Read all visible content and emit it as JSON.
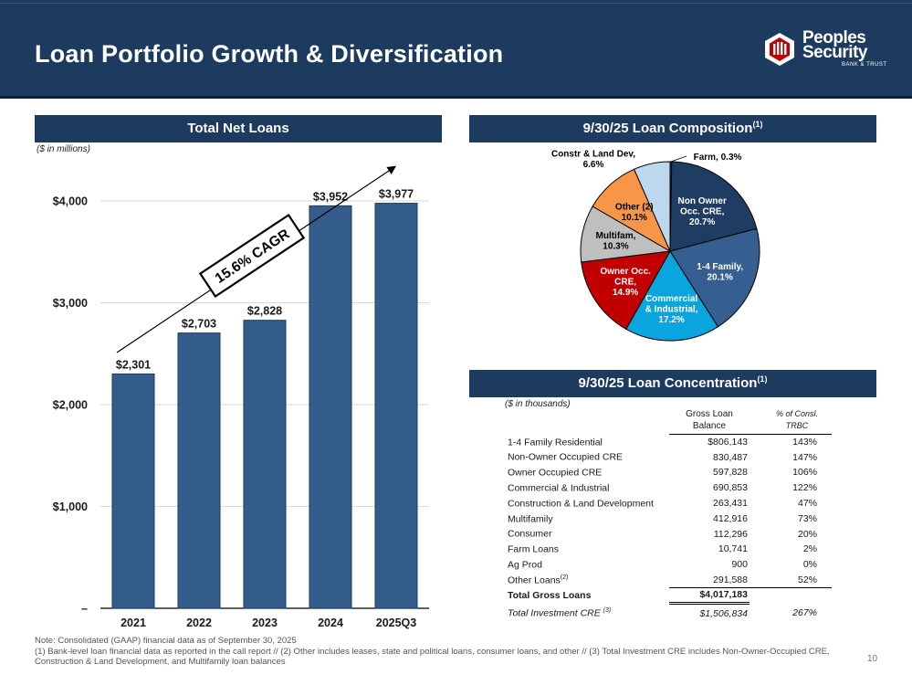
{
  "header": {
    "title": "Loan Portfolio Growth & Diversification"
  },
  "logo": {
    "line1": "Peoples",
    "line2": "Security",
    "line3": "BANK & TRUST"
  },
  "colors": {
    "header_bg": "#1d3a5f",
    "bar": "#345d8c"
  },
  "left_panel": {
    "title": "Total Net Loans",
    "unit": "($ in millions)"
  },
  "composition": {
    "title": "9/30/25 Loan Composition",
    "sup": "(1)"
  },
  "concentration": {
    "title": "9/30/25 Loan Concentration",
    "sup": "(1)",
    "unit": "($ in thousands)",
    "col_balance_line1": "Gross Loan",
    "col_balance_line2": "Balance",
    "col_pct_line1": "% of Consl.",
    "col_pct_line2": "TRBC",
    "rows": [
      {
        "label": "1-4 Family Residential",
        "sup": "",
        "balance": "$806,143",
        "pct": "143%"
      },
      {
        "label": "Non-Owner Occupied CRE",
        "sup": "",
        "balance": "830,487",
        "pct": "147%"
      },
      {
        "label": "Owner Occupied CRE",
        "sup": "",
        "balance": "597,828",
        "pct": "106%"
      },
      {
        "label": "Commercial & Industrial",
        "sup": "",
        "balance": "690,853",
        "pct": "122%"
      },
      {
        "label": "Construction & Land Development",
        "sup": "",
        "balance": "263,431",
        "pct": "47%"
      },
      {
        "label": "Multifamily",
        "sup": "",
        "balance": "412,916",
        "pct": "73%"
      },
      {
        "label": "Consumer",
        "sup": "",
        "balance": "112,296",
        "pct": "20%"
      },
      {
        "label": "Farm Loans",
        "sup": "",
        "balance": "10,741",
        "pct": "2%"
      },
      {
        "label": "Ag Prod",
        "sup": "",
        "balance": "900",
        "pct": "0%"
      },
      {
        "label": "Other Loans",
        "sup": "(2)",
        "balance": "291,588",
        "pct": "52%"
      }
    ],
    "total": {
      "label": "Total Gross Loans",
      "balance": "$4,017,183",
      "pct": ""
    },
    "investment": {
      "label": "Total Investment CRE",
      "sup": "(3)",
      "balance": "$1,506,834",
      "pct": "267%"
    }
  },
  "chart_data": [
    {
      "type": "bar",
      "title": "Total Net Loans",
      "categories": [
        "2021",
        "2022",
        "2023",
        "2024",
        "2025Q3"
      ],
      "values": [
        2301,
        2703,
        2828,
        3952,
        3977
      ],
      "value_labels": [
        "$2,301",
        "$2,703",
        "$2,828",
        "$3,952",
        "$3,977"
      ],
      "ylim": [
        0,
        4000
      ],
      "yticks": [
        0,
        1000,
        2000,
        3000,
        4000
      ],
      "ytick_labels": [
        "–",
        "$1,000",
        "$2,000",
        "$3,000",
        "$4,000"
      ],
      "ylabel": "($ in millions)",
      "annotation": "15.6% CAGR",
      "grid": true
    },
    {
      "type": "pie",
      "title": "9/30/25 Loan Composition",
      "slices": [
        {
          "label": "Farm",
          "value": 0.3,
          "text": "Farm,  0.3%",
          "color": "#1f3d63"
        },
        {
          "label": "Non Owner Occ. CRE",
          "value": 20.7,
          "text": "Non Owner|Occ. CRE,|20.7%",
          "color": "#1f3d63"
        },
        {
          "label": "1-4 Family",
          "value": 20.1,
          "text": "1-4 Family,|20.1%",
          "color": "#355e91"
        },
        {
          "label": "Commercial & Industrial",
          "value": 17.2,
          "text": "Commercial|& Industrial,|17.2%",
          "color": "#0aa5df"
        },
        {
          "label": "Owner Occ. CRE",
          "value": 14.9,
          "text": "Owner Occ.|CRE,|14.9%",
          "color": "#c00000"
        },
        {
          "label": "Multifam",
          "value": 10.3,
          "text": "Multifam,|10.3%",
          "color": "#bfbfbf"
        },
        {
          "label": "Other (2)",
          "value": 10.1,
          "text": "Other (2)|10.1%",
          "color": "#f79646"
        },
        {
          "label": "Constr & Land Dev",
          "value": 6.6,
          "text": "Constr & Land Dev,|6.6%",
          "color": "#bdd7ee"
        }
      ]
    }
  ],
  "footer": {
    "line1": "Note: Consolidated (GAAP) financial data as of September 30, 2025",
    "line2": "(1) Bank-level loan financial data as reported in the call report // (2) Other includes leases, state and political loans, consumer loans, and other // (3) Total Investment CRE includes Non-Owner-Occupied CRE, Construction & Land Development, and Multifamily loan balances",
    "page_number": "10"
  }
}
